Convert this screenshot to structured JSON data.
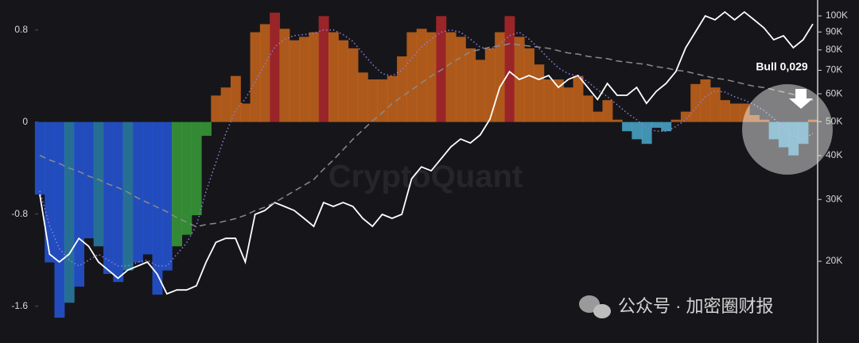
{
  "chart_data": {
    "type": "bar",
    "annotation": "Bull 0,029",
    "watermark": "CryptoQuant",
    "footer_watermark": "公众号 · 加密圈财报",
    "ylim": [
      -1.92,
      1.06
    ],
    "yticks": [
      0.8,
      0,
      -0.8,
      -1.6
    ],
    "y2lim": [
      11700,
      111000
    ],
    "y2scale": "log",
    "y2ticks": [
      {
        "value": 20000,
        "label": "20K"
      },
      {
        "value": 30000,
        "label": "30K"
      },
      {
        "value": 40000,
        "label": "40K"
      },
      {
        "value": 50000,
        "label": "50K"
      },
      {
        "value": 60000,
        "label": "60K"
      },
      {
        "value": 70000,
        "label": "70K"
      },
      {
        "value": 80000,
        "label": "80K"
      },
      {
        "value": 90000,
        "label": "90K"
      },
      {
        "value": 100000,
        "label": "100K"
      }
    ],
    "series": [
      {
        "type": "bar",
        "values": [
          -0.63,
          -1.22,
          -1.7,
          -1.57,
          -1.43,
          -1.01,
          -1.08,
          -1.32,
          -1.39,
          -1.29,
          -1.22,
          -1.15,
          -1.5,
          -1.29,
          -1.08,
          -0.98,
          -0.81,
          -0.12,
          0.23,
          0.3,
          0.4,
          0.16,
          0.78,
          0.85,
          0.95,
          0.81,
          0.71,
          0.74,
          0.78,
          0.92,
          0.78,
          0.71,
          0.64,
          0.43,
          0.37,
          0.37,
          0.4,
          0.57,
          0.78,
          0.81,
          0.78,
          0.92,
          0.78,
          0.74,
          0.64,
          0.54,
          0.64,
          0.78,
          0.92,
          0.74,
          0.64,
          0.5,
          0.37,
          0.37,
          0.3,
          0.4,
          0.23,
          0.09,
          0.19,
          0.02,
          -0.08,
          -0.15,
          -0.19,
          -0.05,
          -0.08,
          0.02,
          0.09,
          0.33,
          0.37,
          0.3,
          0.19,
          0.16,
          0.16,
          0.06,
          0.02,
          -0.15,
          -0.22,
          -0.29,
          -0.19,
          0.02
        ],
        "colors": [
          "#2456d8",
          "#2456d8",
          "#2456d8",
          "#2a7fa8",
          "#2456d8",
          "#2456d8",
          "#2a7fa8",
          "#2456d8",
          "#2456d8",
          "#2a7fa8",
          "#2456d8",
          "#2456d8",
          "#2456d8",
          "#2456d8",
          "#3a9e3a",
          "#3a9e3a",
          "#3a9e3a",
          "#3a9e3a",
          "#c8651c",
          "#c8651c",
          "#c8651c",
          "#c8651c",
          "#c8651c",
          "#c8651c",
          "#b0282c",
          "#c8651c",
          "#c8651c",
          "#c8651c",
          "#c8651c",
          "#b0282c",
          "#c8651c",
          "#c8651c",
          "#c8651c",
          "#c8651c",
          "#c8651c",
          "#c8651c",
          "#c8651c",
          "#c8651c",
          "#c8651c",
          "#c8651c",
          "#c8651c",
          "#b0282c",
          "#c8651c",
          "#c8651c",
          "#c8651c",
          "#c8651c",
          "#c8651c",
          "#c8651c",
          "#b0282c",
          "#c8651c",
          "#c8651c",
          "#c8651c",
          "#c8651c",
          "#c8651c",
          "#c8651c",
          "#c8651c",
          "#c8651c",
          "#c8651c",
          "#c8651c",
          "#c8651c",
          "#4aa8cc",
          "#4aa8cc",
          "#4aa8cc",
          "#4aa8cc",
          "#4aa8cc",
          "#c8651c",
          "#c8651c",
          "#c8651c",
          "#c8651c",
          "#c8651c",
          "#c8651c",
          "#c8651c",
          "#c8651c",
          "#c8651c",
          "#c8651c",
          "#4aa8cc",
          "#4aa8cc",
          "#4aa8cc",
          "#4aa8cc",
          "#c8651c"
        ]
      },
      {
        "type": "line",
        "axis": "y2",
        "color": "#ffffff",
        "line_style": "solid",
        "values": [
          31000,
          20950,
          19900,
          20950,
          23240,
          22060,
          19900,
          18870,
          17900,
          18870,
          19380,
          19900,
          18400,
          16150,
          16570,
          16570,
          17020,
          19900,
          22650,
          23240,
          23240,
          19900,
          27200,
          27900,
          29400,
          28650,
          27900,
          26500,
          25150,
          29400,
          28650,
          29400,
          28650,
          26500,
          25150,
          27200,
          26500,
          27200,
          34350,
          37150,
          36200,
          39150,
          42350,
          44600,
          43450,
          45800,
          50800,
          62550,
          69400,
          65900,
          67650,
          65900,
          67650,
          62550,
          65900,
          67650,
          62550,
          57800,
          64200,
          59400,
          59400,
          62550,
          56350,
          60950,
          64200,
          69400,
          81150,
          90100,
          100000,
          97450,
          102600,
          97450,
          102600,
          97450,
          92450,
          85500,
          87750,
          81150,
          85500,
          94850
        ]
      },
      {
        "type": "line",
        "color": "#8a8a8a",
        "line_style": "dashed",
        "values": [
          -0.29,
          -0.33,
          -0.36,
          -0.4,
          -0.43,
          -0.47,
          -0.5,
          -0.54,
          -0.57,
          -0.61,
          -0.66,
          -0.7,
          -0.74,
          -0.78,
          -0.83,
          -0.87,
          -0.91,
          -0.89,
          -0.88,
          -0.86,
          -0.84,
          -0.81,
          -0.77,
          -0.74,
          -0.7,
          -0.65,
          -0.6,
          -0.55,
          -0.5,
          -0.41,
          -0.33,
          -0.24,
          -0.15,
          -0.07,
          0.01,
          0.08,
          0.16,
          0.22,
          0.28,
          0.34,
          0.4,
          0.45,
          0.51,
          0.56,
          0.61,
          0.63,
          0.65,
          0.66,
          0.68,
          0.67,
          0.66,
          0.65,
          0.64,
          0.62,
          0.6,
          0.59,
          0.57,
          0.56,
          0.55,
          0.53,
          0.52,
          0.51,
          0.5,
          0.48,
          0.47,
          0.45,
          0.44,
          0.42,
          0.4,
          0.38,
          0.37,
          0.35,
          0.33,
          0.31,
          0.3,
          0.28,
          0.26,
          0.24,
          0.21,
          0.19
        ]
      },
      {
        "type": "line",
        "color": "#8d7fe0",
        "line_style": "dotted",
        "values": [
          -0.6,
          -0.9,
          -1.1,
          -1.2,
          -1.25,
          -1.2,
          -1.15,
          -1.2,
          -1.25,
          -1.25,
          -1.22,
          -1.2,
          -1.25,
          -1.25,
          -1.15,
          -1.05,
          -0.9,
          -0.6,
          -0.35,
          -0.1,
          0.1,
          0.2,
          0.35,
          0.5,
          0.65,
          0.72,
          0.75,
          0.76,
          0.77,
          0.8,
          0.8,
          0.76,
          0.7,
          0.6,
          0.5,
          0.42,
          0.4,
          0.45,
          0.55,
          0.65,
          0.72,
          0.78,
          0.8,
          0.78,
          0.72,
          0.65,
          0.63,
          0.68,
          0.75,
          0.78,
          0.72,
          0.64,
          0.55,
          0.47,
          0.42,
          0.4,
          0.35,
          0.28,
          0.22,
          0.15,
          0.08,
          0.02,
          -0.05,
          -0.08,
          -0.08,
          -0.04,
          0.02,
          0.12,
          0.22,
          0.27,
          0.26,
          0.22,
          0.19,
          0.15,
          0.1,
          0.03,
          -0.05,
          -0.12,
          -0.15,
          -0.1
        ]
      }
    ]
  }
}
